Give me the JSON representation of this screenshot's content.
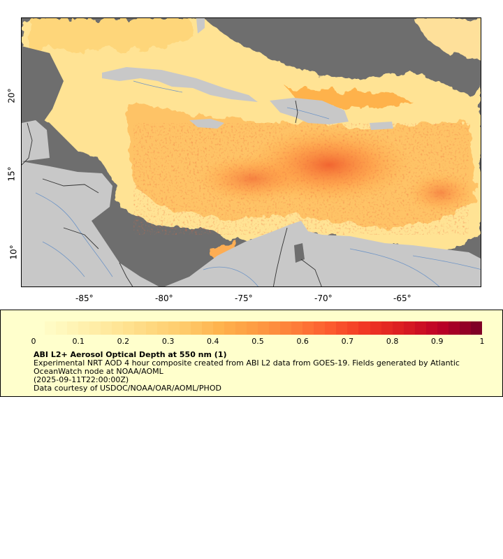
{
  "map": {
    "lon_ticks": [
      "-85°",
      "-80°",
      "-75°",
      "-70°",
      "-65°"
    ],
    "lat_ticks": [
      "20°",
      "15°",
      "10°"
    ],
    "colors": {
      "ocean_no_data": "#6e6e6e",
      "land": "#c8c8c8",
      "river": "#6f95c6",
      "border": "#333333"
    }
  },
  "legend": {
    "ticks": [
      "0",
      "0.1",
      "0.2",
      "0.3",
      "0.4",
      "0.5",
      "0.6",
      "0.7",
      "0.8",
      "0.9",
      "1"
    ],
    "title": "ABI L2+ Aerosol Optical Depth at 550 nm (1)",
    "line1": "Experimental NRT AOD 4 hour composite created from ABI L2 data from GOES-19. Fields generated by Atlantic OceanWatch node at NOAA/AOML",
    "line2": "(2025-09-11T22:00:00Z)",
    "line3": "Data courtesy of USDOC/NOAA/OAR/AOML/PHOD",
    "colormap": [
      "#ffffcc",
      "#fff3b3",
      "#ffe79a",
      "#fed981",
      "#feca6a",
      "#feb24c",
      "#fd9a43",
      "#fd7f3a",
      "#fc5b2e",
      "#f03523",
      "#d91c21",
      "#bd0026",
      "#800026"
    ]
  }
}
